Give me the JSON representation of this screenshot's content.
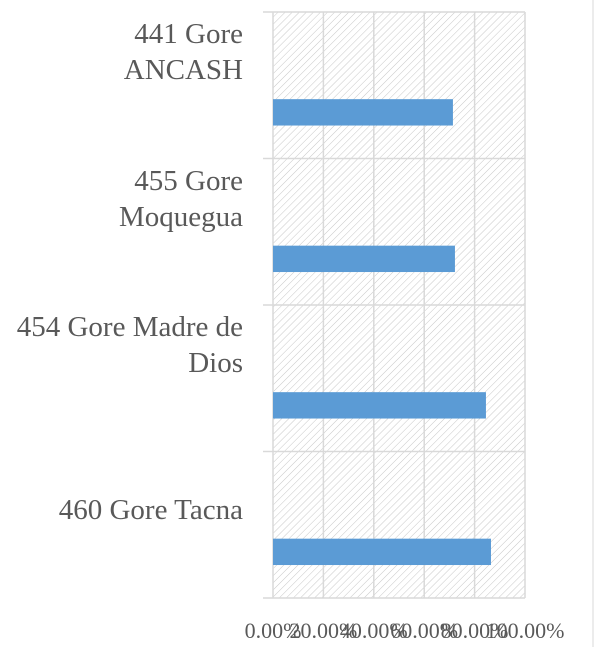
{
  "chart_data": {
    "type": "bar",
    "orientation": "horizontal",
    "categories": [
      "441 Gore ANCASH",
      "455 Gore Moquegua",
      "454 Gore Madre de Dios",
      "460 Gore Tacna"
    ],
    "values": [
      71.4,
      72.2,
      84.5,
      86.5
    ],
    "color": "#5b9bd5",
    "xlim": [
      0,
      100
    ],
    "xticks": [
      {
        "value": 0,
        "label": "0.00%"
      },
      {
        "value": 20,
        "label": "20.00%"
      },
      {
        "value": 40,
        "label": "40.00%"
      },
      {
        "value": 60,
        "label": "60.00%"
      },
      {
        "value": 80,
        "label": "80.00%"
      },
      {
        "value": 100,
        "label": "100.00%"
      }
    ],
    "grid": true
  }
}
